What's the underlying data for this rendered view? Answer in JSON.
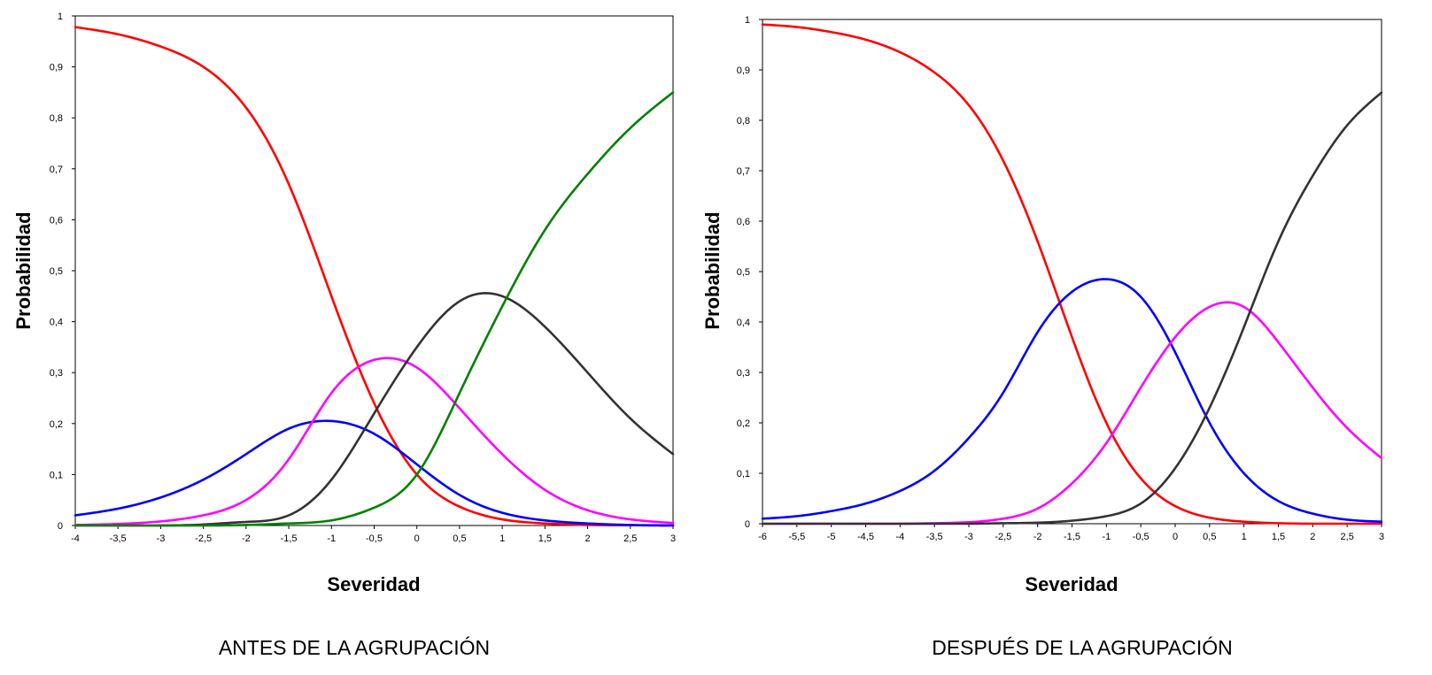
{
  "chart_data": [
    {
      "type": "line",
      "caption": "ANTES DE LA AGRUPACIÓN",
      "xlabel": "Severidad",
      "ylabel": "Probabilidad",
      "xlim": [
        -4,
        3
      ],
      "ylim": [
        0,
        1
      ],
      "xticks": [
        -4,
        -3.5,
        -3,
        -2.5,
        -2,
        -1.5,
        -1,
        -0.5,
        0,
        0.5,
        1,
        1.5,
        2,
        2.5,
        3
      ],
      "xtick_labels": [
        "-4",
        "-3,5",
        "-3",
        "-2,5",
        "-2",
        "-1,5",
        "-1",
        "-0,5",
        "0",
        "0,5",
        "1",
        "1,5",
        "2",
        "2,5",
        "3"
      ],
      "yticks": [
        0,
        0.1,
        0.2,
        0.3,
        0.4,
        0.5,
        0.6,
        0.7,
        0.8,
        0.9,
        1
      ],
      "ytick_labels": [
        "0",
        "0,1",
        "0,2",
        "0,3",
        "0,4",
        "0,5",
        "0,6",
        "0,7",
        "0,8",
        "0,9",
        "1"
      ],
      "grid": false,
      "legend": "none",
      "x": [
        -4,
        -3.5,
        -3,
        -2.5,
        -2,
        -1.5,
        -1,
        -0.5,
        0,
        0.5,
        1,
        1.5,
        2,
        2.5,
        3
      ],
      "series": [
        {
          "color": "#ff0000",
          "values": [
            0.978,
            0.964,
            0.94,
            0.9,
            0.82,
            0.67,
            0.45,
            0.24,
            0.1,
            0.037,
            0.012,
            0.004,
            0.001,
            0.0005,
            0
          ]
        },
        {
          "color": "#0000ff",
          "values": [
            0.02,
            0.033,
            0.055,
            0.09,
            0.14,
            0.19,
            0.205,
            0.18,
            0.12,
            0.06,
            0.025,
            0.01,
            0.004,
            0.001,
            0
          ]
        },
        {
          "color": "#ff00ff",
          "values": [
            0.001,
            0.003,
            0.008,
            0.02,
            0.05,
            0.13,
            0.26,
            0.325,
            0.31,
            0.23,
            0.14,
            0.07,
            0.03,
            0.012,
            0.005
          ]
        },
        {
          "color": "#333333",
          "values": [
            0,
            0,
            0,
            0.002,
            0.007,
            0.02,
            0.09,
            0.22,
            0.35,
            0.44,
            0.45,
            0.39,
            0.3,
            0.21,
            0.14
          ]
        },
        {
          "color": "#008000",
          "values": [
            0,
            0,
            0,
            0,
            0.001,
            0.004,
            0.01,
            0.035,
            0.1,
            0.26,
            0.43,
            0.58,
            0.69,
            0.78,
            0.85
          ]
        }
      ]
    },
    {
      "type": "line",
      "caption": "DESPUÉS DE LA AGRUPACIÓN",
      "xlabel": "Severidad",
      "ylabel": "Probabilidad",
      "xlim": [
        -6,
        3
      ],
      "ylim": [
        0,
        1
      ],
      "xticks": [
        -6,
        -5.5,
        -5,
        -4.5,
        -4,
        -3.5,
        -3,
        -2.5,
        -2,
        -1.5,
        -1,
        -0.5,
        0,
        0.5,
        1,
        1.5,
        2,
        2.5,
        3
      ],
      "xtick_labels": [
        "-6",
        "-5,5",
        "-5",
        "-4,5",
        "-4",
        "-3,5",
        "-3",
        "-2,5",
        "-2",
        "-1,5",
        "-1",
        "-0,5",
        "0",
        "0,5",
        "1",
        "1,5",
        "2",
        "2,5",
        "3"
      ],
      "yticks": [
        0,
        0.1,
        0.2,
        0.3,
        0.4,
        0.5,
        0.6,
        0.7,
        0.8,
        0.9,
        1
      ],
      "ytick_labels": [
        "0",
        "0,1",
        "0,2",
        "0,3",
        "0,4",
        "0,5",
        "0,6",
        "0,7",
        "0,8",
        "0,9",
        "1"
      ],
      "grid": false,
      "legend": "none",
      "x": [
        -6,
        -5.5,
        -5,
        -4.5,
        -4,
        -3.5,
        -3,
        -2.5,
        -2,
        -1.5,
        -1,
        -0.5,
        0,
        0.5,
        1,
        1.5,
        2,
        2.5,
        3
      ],
      "series": [
        {
          "color": "#ff0000",
          "values": [
            0.99,
            0.985,
            0.975,
            0.96,
            0.935,
            0.895,
            0.83,
            0.72,
            0.56,
            0.37,
            0.2,
            0.09,
            0.035,
            0.012,
            0.004,
            0.001,
            0,
            0,
            0
          ]
        },
        {
          "color": "#0000ff",
          "values": [
            0.01,
            0.015,
            0.025,
            0.04,
            0.065,
            0.105,
            0.17,
            0.26,
            0.38,
            0.46,
            0.485,
            0.45,
            0.34,
            0.2,
            0.1,
            0.045,
            0.02,
            0.008,
            0.004
          ]
        },
        {
          "color": "#ff00ff",
          "values": [
            0,
            0,
            0,
            0,
            0,
            0.001,
            0.003,
            0.01,
            0.03,
            0.08,
            0.16,
            0.27,
            0.37,
            0.43,
            0.43,
            0.36,
            0.27,
            0.19,
            0.13
          ]
        },
        {
          "color": "#333333",
          "values": [
            0,
            0,
            0,
            0,
            0,
            0,
            0,
            0.001,
            0.002,
            0.006,
            0.015,
            0.04,
            0.11,
            0.23,
            0.39,
            0.56,
            0.69,
            0.79,
            0.855
          ]
        }
      ]
    }
  ]
}
